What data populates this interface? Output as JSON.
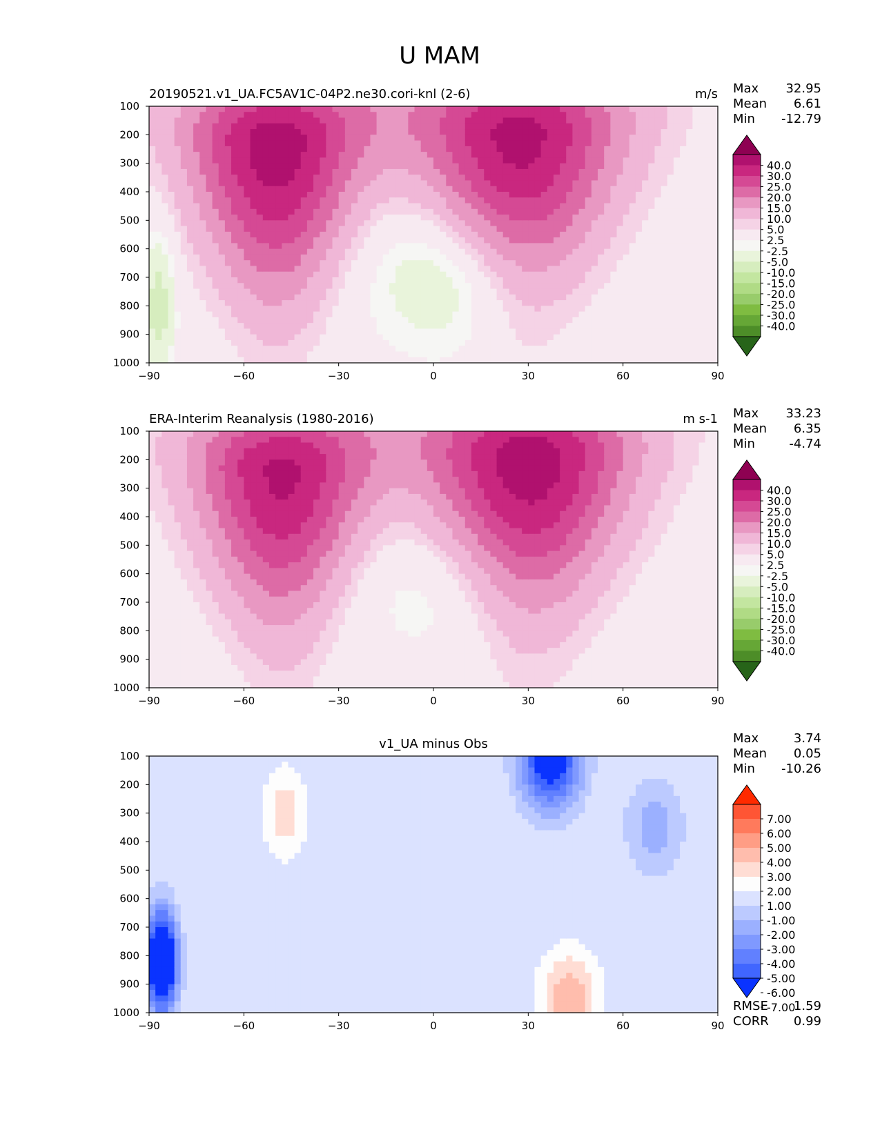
{
  "figure_title": "U MAM",
  "chart_data": [
    {
      "type": "heatmap",
      "title": "20190521.v1_UA.FC5AV1C-04P2.ne30.cori-knl (2-6)",
      "units": "m/s",
      "xlabel": "",
      "ylabel": "",
      "xlim": [
        -90,
        90
      ],
      "ylim": [
        1000,
        100
      ],
      "x_ticks": [
        "−90",
        "−60",
        "−30",
        "0",
        "30",
        "60",
        "90"
      ],
      "y_ticks": [
        "100",
        "200",
        "300",
        "400",
        "500",
        "600",
        "700",
        "800",
        "900",
        "1000"
      ],
      "stats": {
        "max_label": "Max",
        "max": "32.95",
        "mean_label": "Mean",
        "mean": "6.61",
        "min_label": "Min",
        "min": "-12.79"
      },
      "colorbar": {
        "colors": [
          "#8e0152",
          "#b0116e",
          "#c9277f",
          "#d54994",
          "#dd6ba6",
          "#e898c2",
          "#f0b7d7",
          "#f5d3e6",
          "#f7eaf1",
          "#f6f6f4",
          "#e9f4db",
          "#d6edbe",
          "#c3e6a0",
          "#b0db85",
          "#98cc6b",
          "#7fbc41",
          "#66a736",
          "#4d8d28",
          "#276419"
        ],
        "labels": [
          "40.0",
          "30.0",
          "25.0",
          "20.0",
          "15.0",
          "10.0",
          "5.0",
          "2.5",
          "-2.5",
          "-5.0",
          "-10.0",
          "-15.0",
          "-20.0",
          "-25.0",
          "-30.0",
          "-40.0"
        ]
      },
      "features": [
        {
          "kind": "jet",
          "name": "Southern Hemisphere jet core",
          "lat": -50,
          "plev": 230,
          "peak": 32.95,
          "width_deg": 30,
          "shape": "tilted-equatorward"
        },
        {
          "kind": "jet",
          "name": "Northern Hemisphere jet core",
          "lat": 27,
          "plev": 200,
          "peak": 32.0,
          "width_deg": 35,
          "shape": "tilted-poleward"
        },
        {
          "kind": "easterly",
          "name": "Tropical easterlies",
          "lat": 5,
          "plev": 700,
          "peak": -10.0,
          "width_deg": 25
        },
        {
          "kind": "easterly",
          "name": "Antarctic surface easterlies",
          "lat": -87,
          "plev": 800,
          "peak": -12.79,
          "width_deg": 5
        }
      ]
    },
    {
      "type": "heatmap",
      "title": "ERA-Interim Reanalysis (1980-2016)",
      "units": "m s-1",
      "xlabel": "",
      "ylabel": "",
      "xlim": [
        -90,
        90
      ],
      "ylim": [
        1000,
        100
      ],
      "x_ticks": [
        "−90",
        "−60",
        "−30",
        "0",
        "30",
        "60",
        "90"
      ],
      "y_ticks": [
        "100",
        "200",
        "300",
        "400",
        "500",
        "600",
        "700",
        "800",
        "900",
        "1000"
      ],
      "stats": {
        "max_label": "Max",
        "max": "33.23",
        "mean_label": "Mean",
        "mean": "6.35",
        "min_label": "Min",
        "min": "-4.74"
      },
      "colorbar": {
        "colors": [
          "#8e0152",
          "#b0116e",
          "#c9277f",
          "#d54994",
          "#dd6ba6",
          "#e898c2",
          "#f0b7d7",
          "#f5d3e6",
          "#f7eaf1",
          "#f6f6f4",
          "#e9f4db",
          "#d6edbe",
          "#c3e6a0",
          "#b0db85",
          "#98cc6b",
          "#7fbc41",
          "#66a736",
          "#4d8d28",
          "#276419"
        ],
        "labels": [
          "40.0",
          "30.0",
          "25.0",
          "20.0",
          "15.0",
          "10.0",
          "5.0",
          "2.5",
          "-2.5",
          "-5.0",
          "-10.0",
          "-15.0",
          "-20.0",
          "-25.0",
          "-30.0",
          "-40.0"
        ]
      },
      "features": [
        {
          "kind": "jet",
          "name": "Southern Hemisphere jet core",
          "lat": -48,
          "plev": 240,
          "peak": 31.0,
          "width_deg": 30,
          "shape": "tilted-equatorward"
        },
        {
          "kind": "jet",
          "name": "Northern Hemisphere jet core",
          "lat": 30,
          "plev": 200,
          "peak": 33.23,
          "width_deg": 35,
          "shape": "tilted-poleward"
        },
        {
          "kind": "easterly",
          "name": "Tropical easterlies",
          "lat": 2,
          "plev": 650,
          "peak": -4.74,
          "width_deg": 30
        }
      ]
    },
    {
      "type": "heatmap",
      "title": "v1_UA minus Obs",
      "units": "",
      "xlabel": "",
      "ylabel": "",
      "xlim": [
        -90,
        90
      ],
      "ylim": [
        1000,
        100
      ],
      "x_ticks": [
        "−90",
        "−60",
        "−30",
        "0",
        "30",
        "60",
        "90"
      ],
      "y_ticks": [
        "100",
        "200",
        "300",
        "400",
        "500",
        "600",
        "700",
        "800",
        "900",
        "1000"
      ],
      "stats": {
        "max_label": "Max",
        "max": "3.74",
        "mean_label": "Mean",
        "mean": "0.05",
        "min_label": "Min",
        "min": "-10.26"
      },
      "metrics": {
        "rmse_label": "RMSE",
        "rmse": "1.59",
        "corr_label": "CORR",
        "corr": "0.99"
      },
      "colorbar": {
        "colors": [
          "#ff2a00",
          "#ff5534",
          "#ff7a5c",
          "#ff9d85",
          "#ffbdad",
          "#ffddd4",
          "#fdfdfd",
          "#dbe2ff",
          "#bccaff",
          "#9bb0ff",
          "#7f99ff",
          "#6180ff",
          "#4066ff",
          "#0a33ff"
        ],
        "labels": [
          "7.00",
          "6.00",
          "5.00",
          "4.00",
          "3.00",
          "2.00",
          "1.00",
          "-1.00",
          "-2.00",
          "-3.00",
          "-4.00",
          "-5.00",
          "-6.00",
          "-7.00"
        ]
      },
      "features": [
        {
          "kind": "anomaly",
          "name": "Positive bias SH mid-latitudes",
          "lat": -47,
          "plev": 300,
          "peak": 2.5,
          "width_deg": 8
        },
        {
          "kind": "anomaly",
          "name": "Positive bias NH 40N lower troposphere",
          "lat": 43,
          "plev": 950,
          "peak": 3.74,
          "width_deg": 10
        },
        {
          "kind": "anomaly",
          "name": "Negative bias NH jet top",
          "lat": 37,
          "plev": 110,
          "peak": -7.5,
          "width_deg": 10
        },
        {
          "kind": "anomaly",
          "name": "Negative bias 70N",
          "lat": 70,
          "plev": 350,
          "peak": -2.5,
          "width_deg": 10
        },
        {
          "kind": "anomaly",
          "name": "Negative bias Antarctic surface",
          "lat": -86,
          "plev": 820,
          "peak": -10.26,
          "width_deg": 5
        }
      ]
    }
  ]
}
